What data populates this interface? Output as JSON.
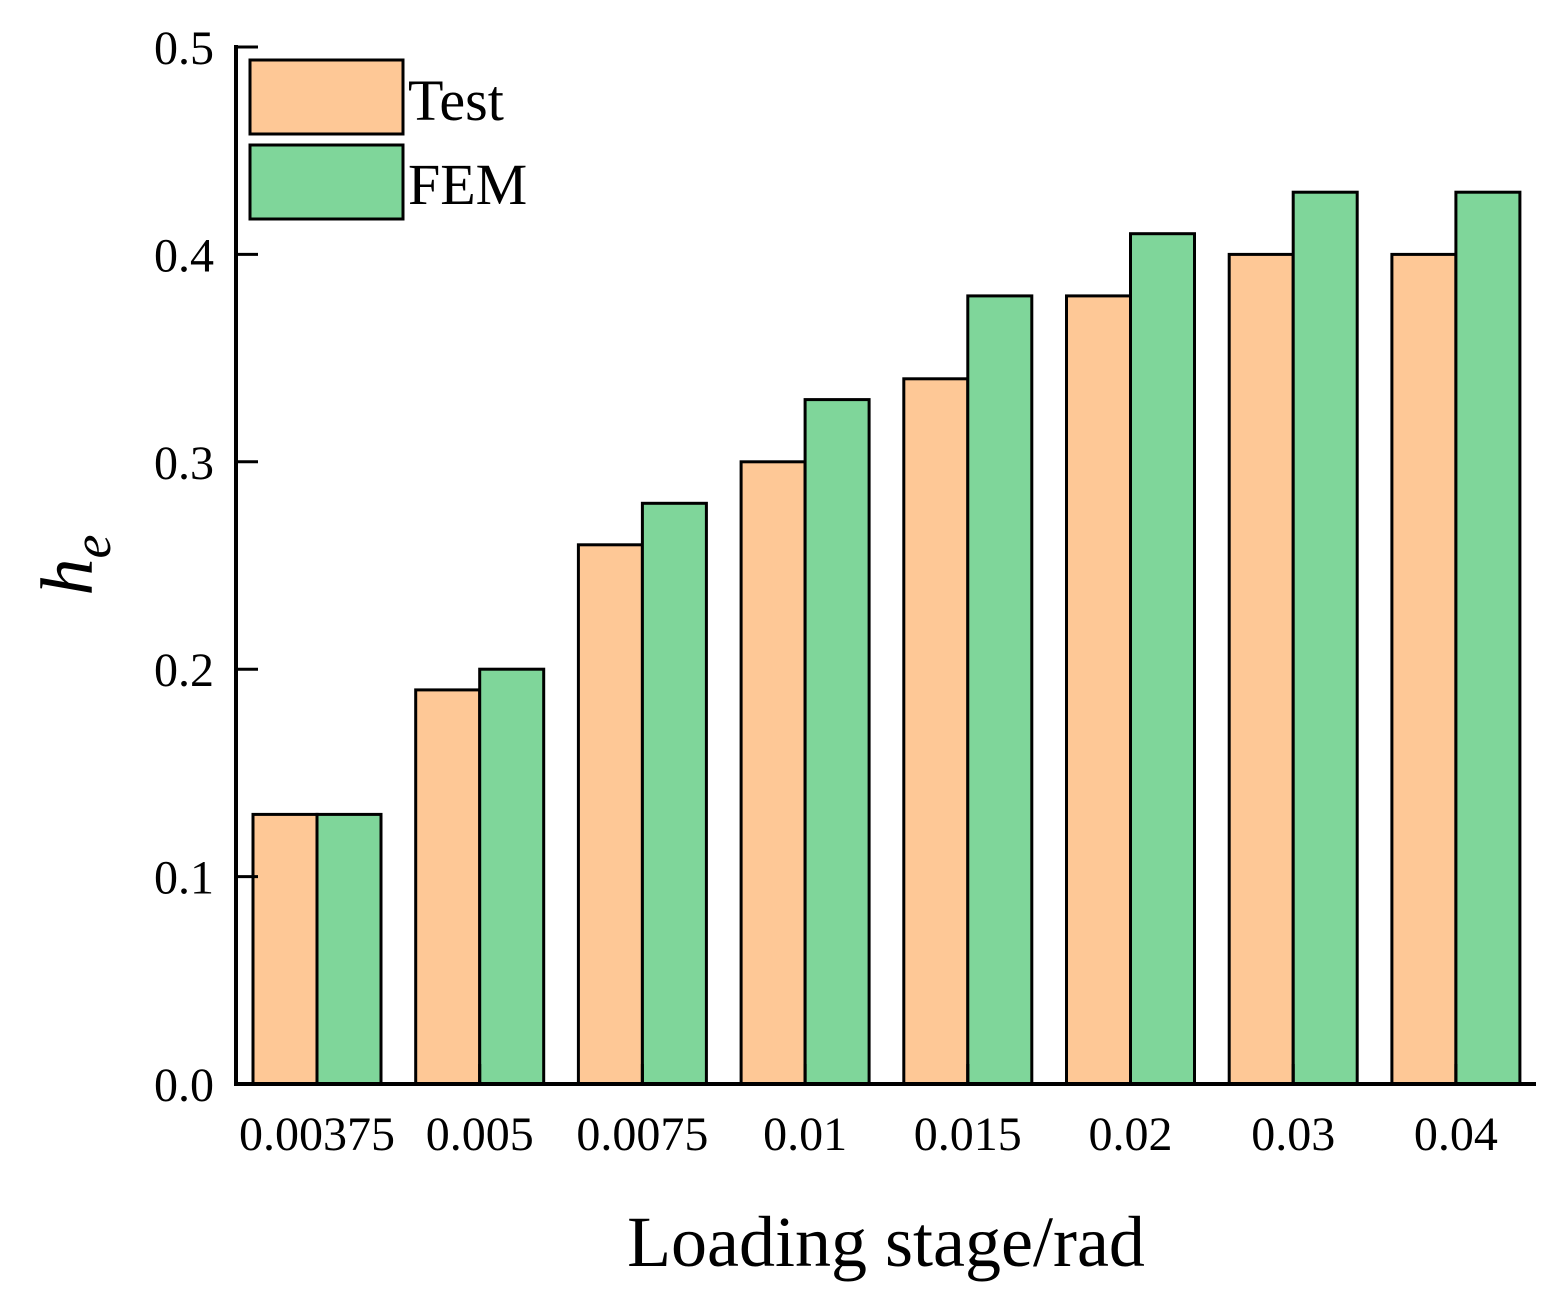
{
  "chart_data": {
    "type": "bar",
    "title": "",
    "xlabel": "Loading stage/rad",
    "ylabel": "h",
    "ylabel_subscript": "e",
    "ylim": [
      0,
      0.5
    ],
    "yticks": [
      "0.0",
      "0.1",
      "0.2",
      "0.3",
      "0.4",
      "0.5"
    ],
    "categories": [
      "0.00375",
      "0.005",
      "0.0075",
      "0.01",
      "0.015",
      "0.02",
      "0.03",
      "0.04"
    ],
    "series": [
      {
        "name": "Test",
        "color": "#FEC896",
        "values": [
          0.13,
          0.19,
          0.26,
          0.3,
          0.34,
          0.38,
          0.4,
          0.4
        ]
      },
      {
        "name": "FEM",
        "color": "#7FD69A",
        "values": [
          0.13,
          0.2,
          0.28,
          0.33,
          0.38,
          0.41,
          0.43,
          0.43
        ]
      }
    ],
    "legend_position": "top-left",
    "grid": false
  }
}
